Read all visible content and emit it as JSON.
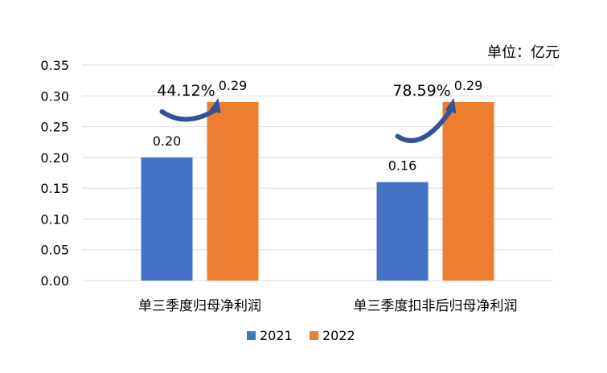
{
  "chart_data": {
    "type": "bar",
    "unit_label": "单位：亿元",
    "categories": [
      "单三季度归母净利润",
      "单三季度扣非后归母净利润"
    ],
    "series": [
      {
        "name": "2021",
        "values": [
          0.2,
          0.16
        ],
        "labels": [
          "0.20",
          "0.16"
        ]
      },
      {
        "name": "2022",
        "values": [
          0.29,
          0.29
        ],
        "labels": [
          "0.29",
          "0.29"
        ]
      }
    ],
    "growth_labels": [
      "44.12%",
      "78.59%"
    ],
    "y_ticks": [
      "0.00",
      "0.05",
      "0.10",
      "0.15",
      "0.20",
      "0.25",
      "0.30",
      "0.35"
    ],
    "ylim": [
      0,
      0.35
    ],
    "grid": true,
    "legend_position": "bottom",
    "colors": {
      "2021": "#4472C4",
      "2022": "#ED7D31",
      "arrow": "#2F5597",
      "grid": "#D9D9D9"
    }
  }
}
